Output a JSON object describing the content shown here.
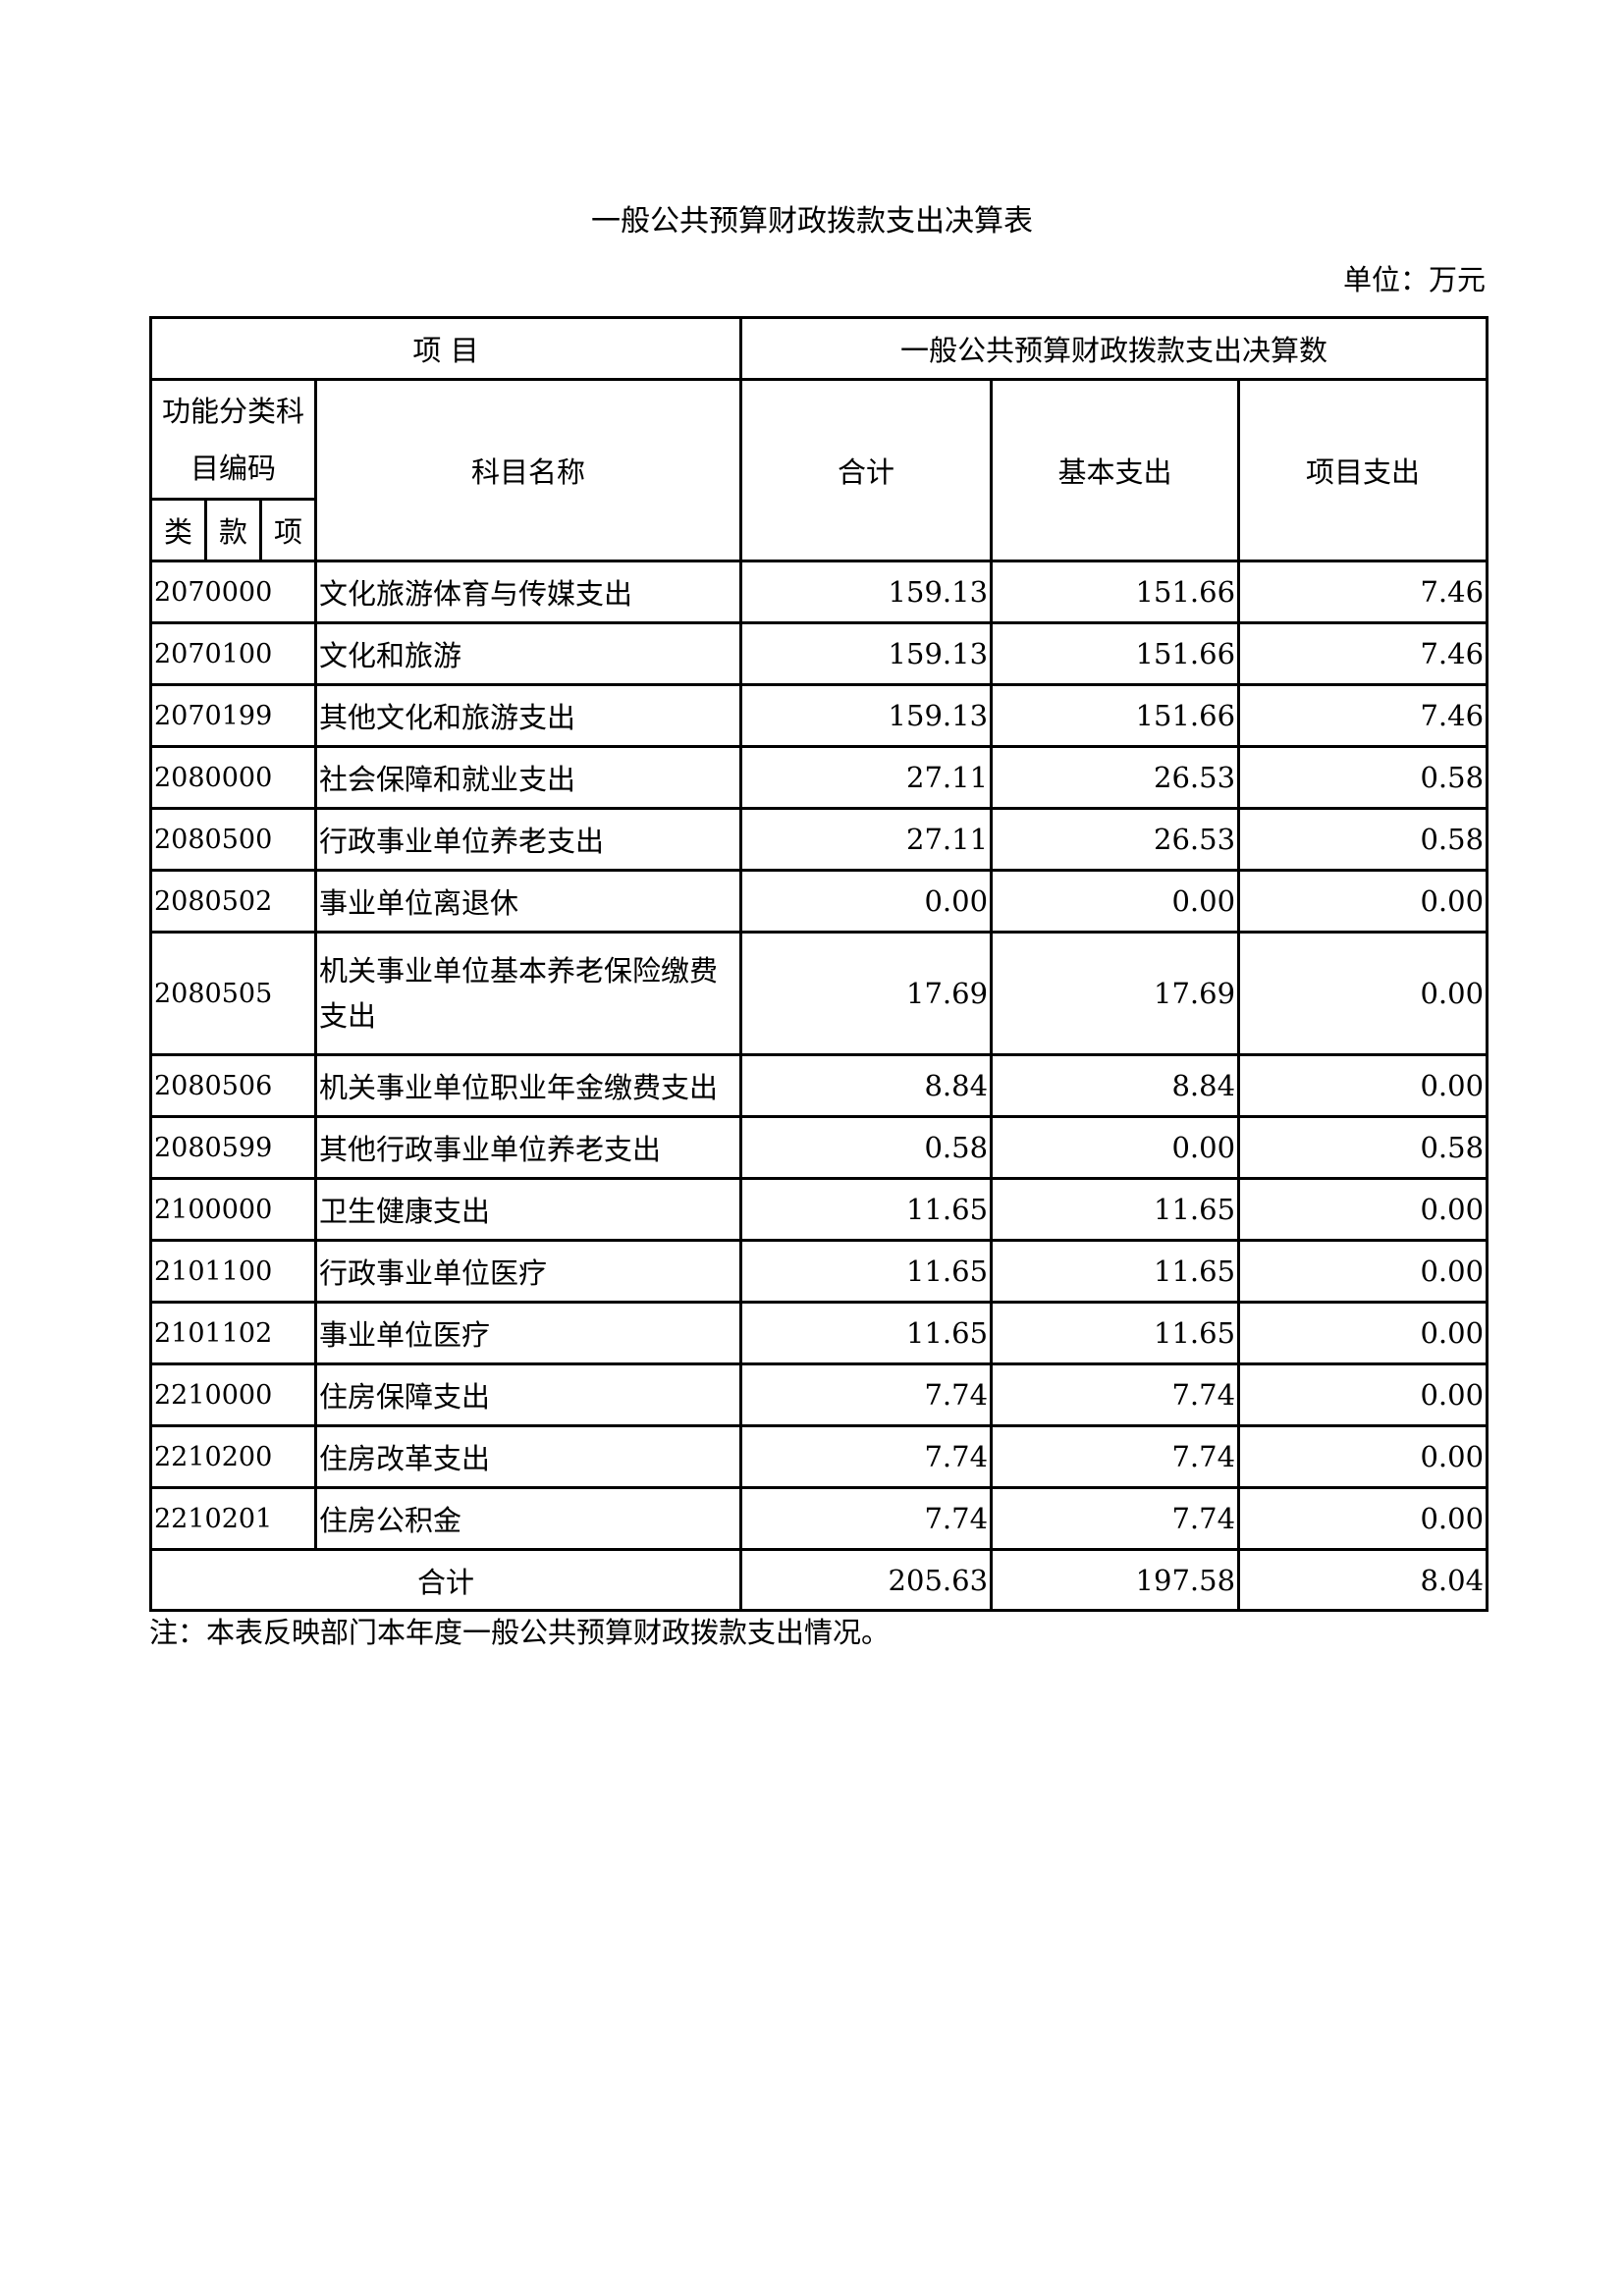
{
  "title": "一般公共预算财政拨款支出决算表",
  "unit": "单位：万元",
  "header": {
    "item": "项 目",
    "group": "一般公共预算财政拨款支出决算数",
    "code": "功能分类科目编码",
    "name": "科目名称",
    "total": "合计",
    "basic": "基本支出",
    "project": "项目支出",
    "lei": "类",
    "kuan": "款",
    "xiang": "项"
  },
  "rows": [
    {
      "code": "2070000",
      "name": "文化旅游体育与传媒支出",
      "total": "159.13",
      "basic": "151.66",
      "project": "7.46"
    },
    {
      "code": "2070100",
      "name": "文化和旅游",
      "total": "159.13",
      "basic": "151.66",
      "project": "7.46"
    },
    {
      "code": "2070199",
      "name": "其他文化和旅游支出",
      "total": "159.13",
      "basic": "151.66",
      "project": "7.46"
    },
    {
      "code": "2080000",
      "name": "社会保障和就业支出",
      "total": "27.11",
      "basic": "26.53",
      "project": "0.58"
    },
    {
      "code": "2080500",
      "name": "行政事业单位养老支出",
      "total": "27.11",
      "basic": "26.53",
      "project": "0.58"
    },
    {
      "code": "2080502",
      "name": "事业单位离退休",
      "total": "0.00",
      "basic": "0.00",
      "project": "0.00"
    },
    {
      "code": "2080505",
      "name": "机关事业单位基本养老保险缴费支出",
      "total": "17.69",
      "basic": "17.69",
      "project": "0.00"
    },
    {
      "code": "2080506",
      "name": "机关事业单位职业年金缴费支出",
      "total": "8.84",
      "basic": "8.84",
      "project": "0.00"
    },
    {
      "code": "2080599",
      "name": "其他行政事业单位养老支出",
      "total": "0.58",
      "basic": "0.00",
      "project": "0.58"
    },
    {
      "code": "2100000",
      "name": "卫生健康支出",
      "total": "11.65",
      "basic": "11.65",
      "project": "0.00"
    },
    {
      "code": "2101100",
      "name": "行政事业单位医疗",
      "total": "11.65",
      "basic": "11.65",
      "project": "0.00"
    },
    {
      "code": "2101102",
      "name": "事业单位医疗",
      "total": "11.65",
      "basic": "11.65",
      "project": "0.00"
    },
    {
      "code": "2210000",
      "name": "住房保障支出",
      "total": "7.74",
      "basic": "7.74",
      "project": "0.00"
    },
    {
      "code": "2210200",
      "name": "住房改革支出",
      "total": "7.74",
      "basic": "7.74",
      "project": "0.00"
    },
    {
      "code": "2210201",
      "name": "住房公积金",
      "total": "7.74",
      "basic": "7.74",
      "project": "0.00"
    }
  ],
  "total_row": {
    "label": "合计",
    "total": "205.63",
    "basic": "197.58",
    "project": "8.04"
  },
  "note": "注：本表反映部门本年度一般公共预算财政拨款支出情况。"
}
